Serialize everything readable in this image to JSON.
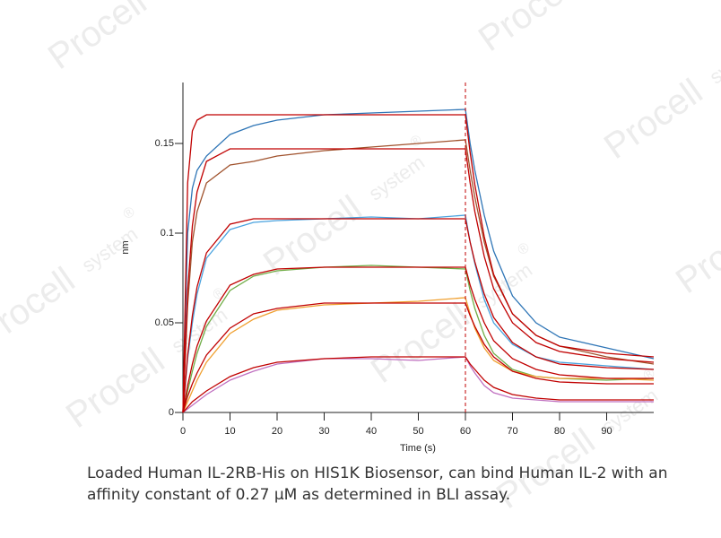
{
  "chart_data": {
    "type": "line",
    "x_label": "Time (s)",
    "y_label": "nm",
    "x": [
      0,
      1,
      2,
      3,
      5,
      10,
      15,
      20,
      30,
      40,
      50,
      60,
      61,
      62,
      64,
      66,
      70,
      75,
      80,
      90,
      100
    ],
    "xlim": [
      0,
      100
    ],
    "xticks": [
      0,
      10,
      20,
      30,
      40,
      50,
      60,
      70,
      80,
      90
    ],
    "ylim": [
      0,
      0.184
    ],
    "yticks": [
      0,
      0.05,
      0.1,
      0.15
    ],
    "vline": {
      "x": 60,
      "color": "#c00000"
    },
    "series": [
      {
        "color": "#2e75b6",
        "values": [
          0,
          0.1,
          0.125,
          0.135,
          0.143,
          0.155,
          0.16,
          0.163,
          0.166,
          0.167,
          0.168,
          0.169,
          0.15,
          0.135,
          0.11,
          0.09,
          0.065,
          0.05,
          0.042,
          0.036,
          0.03
        ]
      },
      {
        "color": "#a0522d",
        "values": [
          0,
          0.06,
          0.095,
          0.112,
          0.128,
          0.138,
          0.14,
          0.143,
          0.146,
          0.148,
          0.15,
          0.152,
          0.135,
          0.12,
          0.095,
          0.076,
          0.055,
          0.043,
          0.037,
          0.031,
          0.027
        ]
      },
      {
        "color": "#4aa3df",
        "values": [
          0,
          0.03,
          0.05,
          0.066,
          0.086,
          0.102,
          0.106,
          0.107,
          0.108,
          0.109,
          0.108,
          0.11,
          0.095,
          0.083,
          0.063,
          0.05,
          0.038,
          0.031,
          0.028,
          0.026,
          0.024
        ]
      },
      {
        "color": "#70ad47",
        "values": [
          0,
          0.012,
          0.023,
          0.033,
          0.048,
          0.068,
          0.076,
          0.079,
          0.081,
          0.082,
          0.081,
          0.08,
          0.068,
          0.058,
          0.043,
          0.033,
          0.024,
          0.02,
          0.019,
          0.018,
          0.019
        ]
      },
      {
        "color": "#f0a030",
        "values": [
          0,
          0.006,
          0.012,
          0.018,
          0.028,
          0.044,
          0.052,
          0.057,
          0.06,
          0.061,
          0.062,
          0.064,
          0.055,
          0.047,
          0.036,
          0.029,
          0.023,
          0.02,
          0.019,
          0.019,
          0.018
        ]
      },
      {
        "color": "#c070c0",
        "values": [
          0,
          0.002,
          0.004,
          0.006,
          0.01,
          0.018,
          0.023,
          0.027,
          0.03,
          0.03,
          0.029,
          0.031,
          0.026,
          0.022,
          0.015,
          0.011,
          0.008,
          0.007,
          0.006,
          0.006,
          0.006
        ]
      },
      {
        "color": "#c00000",
        "values": [
          0,
          0.128,
          0.157,
          0.163,
          0.166,
          0.166,
          0.166,
          0.166,
          0.166,
          0.166,
          0.166,
          0.166,
          0.145,
          0.127,
          0.098,
          0.077,
          0.055,
          0.043,
          0.037,
          0.033,
          0.031
        ]
      },
      {
        "color": "#c00000",
        "values": [
          0,
          0.068,
          0.104,
          0.123,
          0.14,
          0.147,
          0.147,
          0.147,
          0.147,
          0.147,
          0.147,
          0.147,
          0.128,
          0.112,
          0.087,
          0.069,
          0.05,
          0.039,
          0.034,
          0.03,
          0.028
        ]
      },
      {
        "color": "#c00000",
        "values": [
          0,
          0.032,
          0.054,
          0.07,
          0.089,
          0.105,
          0.108,
          0.108,
          0.108,
          0.108,
          0.108,
          0.108,
          0.095,
          0.084,
          0.066,
          0.053,
          0.039,
          0.031,
          0.027,
          0.025,
          0.024
        ]
      },
      {
        "color": "#c00000",
        "values": [
          0,
          0.015,
          0.027,
          0.037,
          0.051,
          0.071,
          0.077,
          0.08,
          0.081,
          0.081,
          0.081,
          0.081,
          0.071,
          0.063,
          0.05,
          0.04,
          0.03,
          0.024,
          0.021,
          0.019,
          0.019
        ]
      },
      {
        "color": "#c00000",
        "values": [
          0,
          0.009,
          0.016,
          0.022,
          0.032,
          0.047,
          0.055,
          0.058,
          0.061,
          0.061,
          0.061,
          0.061,
          0.054,
          0.048,
          0.038,
          0.031,
          0.023,
          0.019,
          0.017,
          0.016,
          0.016
        ]
      },
      {
        "color": "#c00000",
        "values": [
          0,
          0.003,
          0.006,
          0.008,
          0.012,
          0.02,
          0.025,
          0.028,
          0.03,
          0.031,
          0.031,
          0.031,
          0.027,
          0.024,
          0.018,
          0.014,
          0.01,
          0.008,
          0.007,
          0.007,
          0.007
        ]
      }
    ]
  },
  "caption": "Loaded Human IL-2RB-His on HIS1K Biosensor, can bind Human IL-2 with an affinity constant of 0.27 μM as determined in BLI assay.",
  "watermark": {
    "brand": "Procell",
    "sub": "system",
    "mark": "®"
  }
}
